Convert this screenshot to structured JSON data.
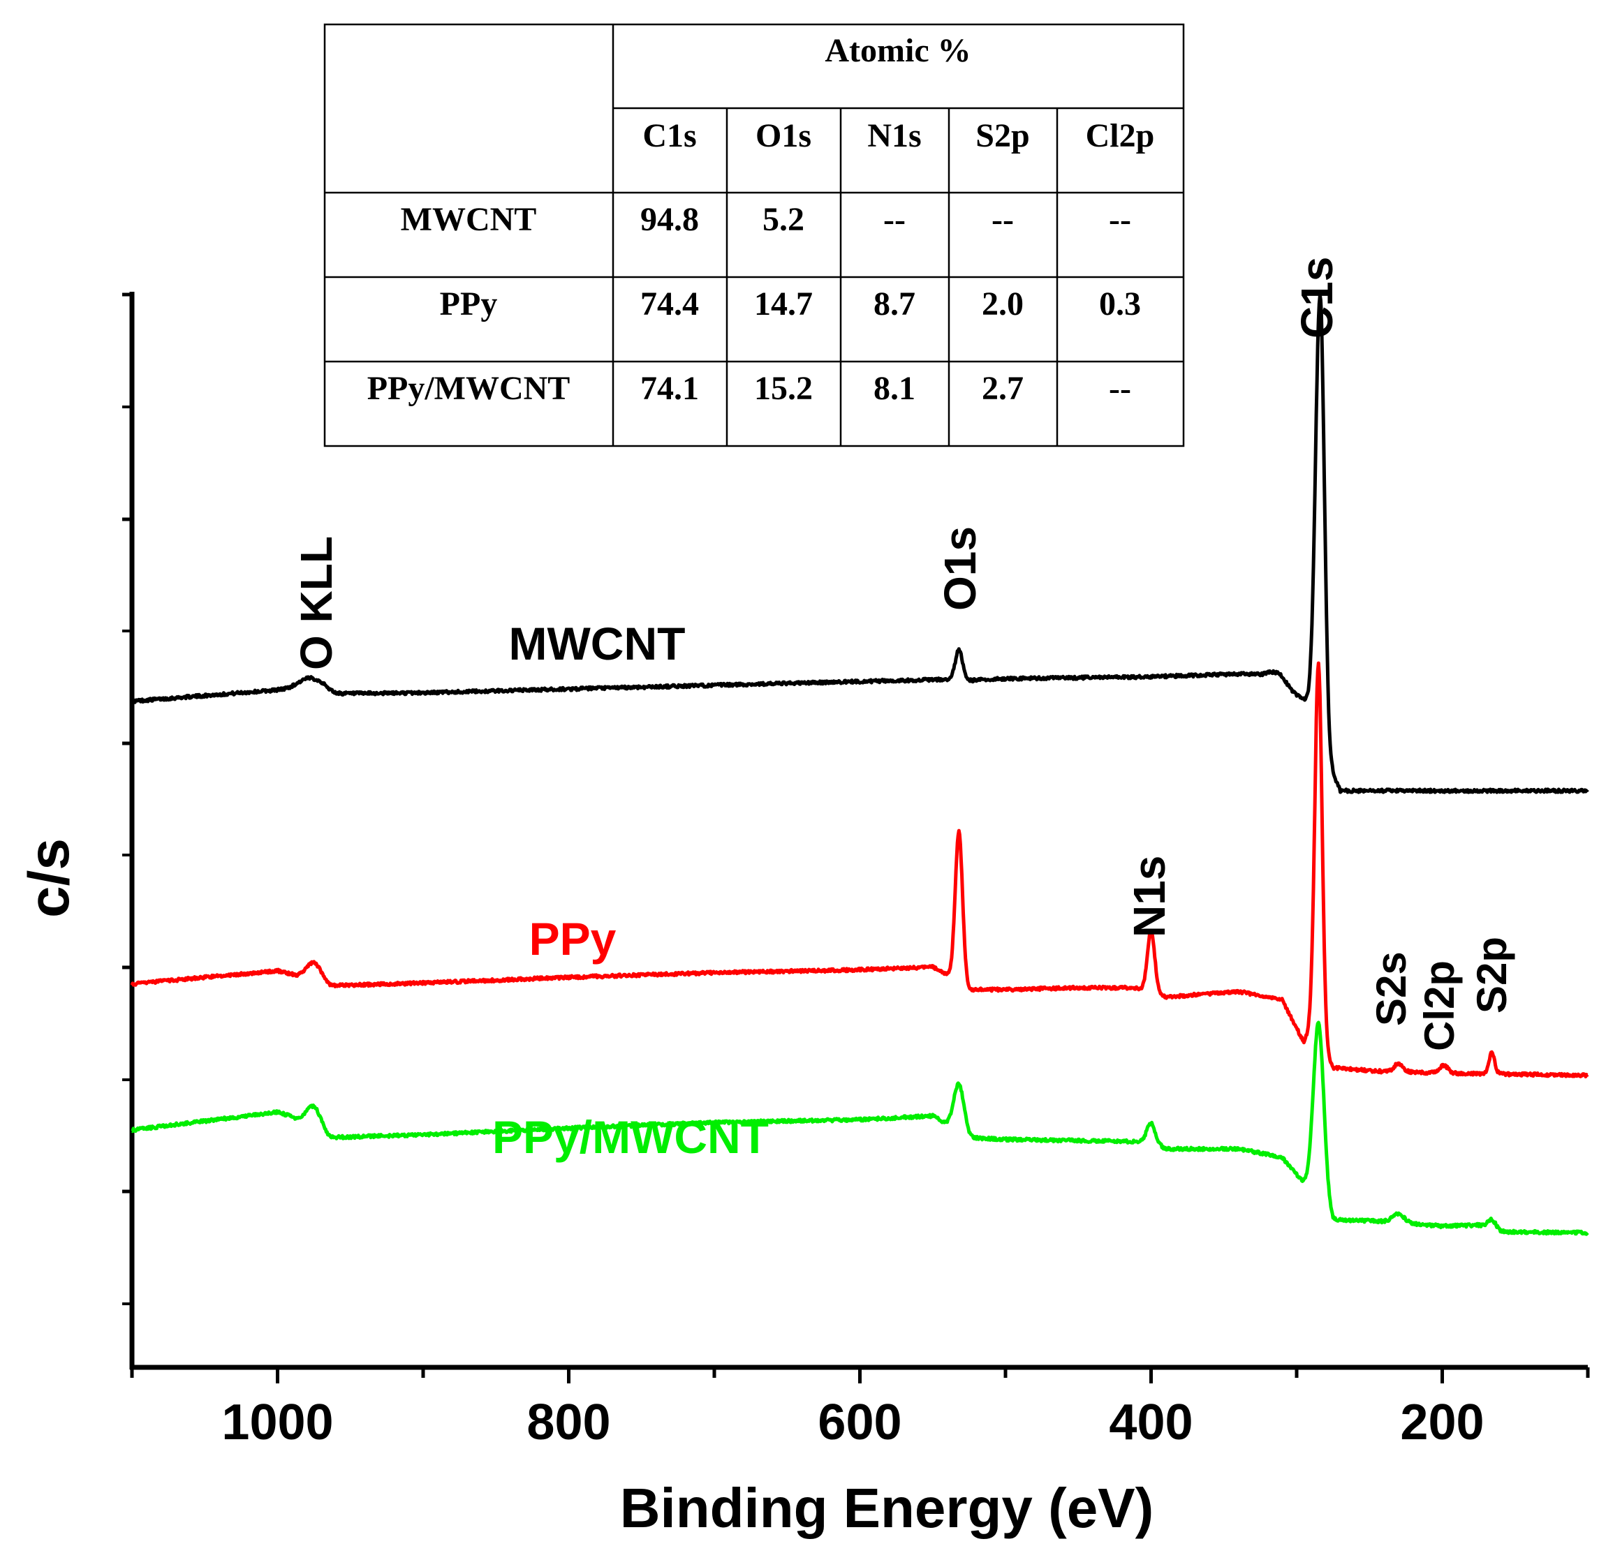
{
  "chart_data": {
    "type": "line",
    "title": "",
    "xlabel": "Binding Energy (eV)",
    "ylabel": "c/s",
    "xlim": [
      1100,
      100
    ],
    "x_reversed": true,
    "xticks_major": [
      1000,
      800,
      600,
      400,
      200
    ],
    "xticks_minor_step": 100,
    "y_ticks_shown_without_labels": true,
    "y_units": "relative intensity (stacked, offset)",
    "series": [
      {
        "name": "MWCNT",
        "color": "#000000",
        "baseline": [
          [
            1100,
            4.9
          ],
          [
            1000,
            5.5
          ],
          [
            970,
            5.6
          ],
          [
            960,
            5.3
          ],
          [
            900,
            5.35
          ],
          [
            800,
            5.55
          ],
          [
            700,
            5.75
          ],
          [
            600,
            5.95
          ],
          [
            545,
            6.05
          ],
          [
            525,
            6.0
          ],
          [
            500,
            6.1
          ],
          [
            400,
            6.2
          ],
          [
            340,
            6.35
          ],
          [
            320,
            6.3
          ],
          [
            300,
            5.2
          ],
          [
            292,
            4.9
          ],
          [
            283,
            6.0
          ],
          [
            278,
            1.5
          ],
          [
            270,
            0.15
          ],
          [
            100,
            0.15
          ]
        ],
        "peaks": [
          {
            "label": "O KLL",
            "x": 978,
            "height": 0.55,
            "width": 8
          },
          {
            "label": "O1s",
            "x": 532,
            "height": 1.6,
            "width": 2.5
          },
          {
            "label": "C1s",
            "x": 284,
            "height": 20.5,
            "width": 3
          },
          {
            "label": "",
            "x": 312,
            "height": 0.5,
            "width": 5
          }
        ],
        "label_text": "MWCNT"
      },
      {
        "name": "PPy",
        "color": "#ff0000",
        "baseline": [
          [
            1100,
            4.9
          ],
          [
            1000,
            5.6
          ],
          [
            990,
            5.4
          ],
          [
            965,
            4.8
          ],
          [
            900,
            4.95
          ],
          [
            800,
            5.25
          ],
          [
            700,
            5.5
          ],
          [
            600,
            5.65
          ],
          [
            550,
            5.8
          ],
          [
            538,
            5.3
          ],
          [
            525,
            4.6
          ],
          [
            500,
            4.6
          ],
          [
            450,
            4.7
          ],
          [
            410,
            4.7
          ],
          [
            390,
            4.2
          ],
          [
            340,
            4.5
          ],
          [
            310,
            4.05
          ],
          [
            295,
            1.8
          ],
          [
            290,
            2.7
          ],
          [
            283,
            1.5
          ],
          [
            275,
            0.45
          ],
          [
            240,
            0.25
          ],
          [
            190,
            0.15
          ],
          [
            100,
            0.05
          ]
        ],
        "peaks": [
          {
            "label": "",
            "x": 975,
            "height": 1.0,
            "width": 5
          },
          {
            "label": "O1s",
            "x": 532,
            "height": 8.0,
            "width": 2.5
          },
          {
            "label": "N1s",
            "x": 400,
            "height": 3.3,
            "width": 2.5
          },
          {
            "label": "C1s",
            "x": 285,
            "height": 20.0,
            "width": 2.5
          },
          {
            "label": "S2s",
            "x": 230,
            "height": 0.45,
            "width": 3
          },
          {
            "label": "Cl2p",
            "x": 199,
            "height": 0.4,
            "width": 3
          },
          {
            "label": "S2p",
            "x": 166,
            "height": 1.1,
            "width": 2
          }
        ],
        "label_text": "PPy"
      },
      {
        "name": "PPy/MWCNT",
        "color": "#00ee00",
        "baseline": [
          [
            1100,
            9.0
          ],
          [
            1000,
            9.95
          ],
          [
            990,
            9.7
          ],
          [
            965,
            8.6
          ],
          [
            900,
            8.75
          ],
          [
            800,
            9.1
          ],
          [
            700,
            9.4
          ],
          [
            600,
            9.55
          ],
          [
            550,
            9.75
          ],
          [
            540,
            9.3
          ],
          [
            525,
            8.6
          ],
          [
            500,
            8.5
          ],
          [
            420,
            8.4
          ],
          [
            400,
            8.35
          ],
          [
            390,
            8.0
          ],
          [
            340,
            8.0
          ],
          [
            310,
            7.55
          ],
          [
            295,
            6.2
          ],
          [
            282,
            5.5
          ],
          [
            275,
            4.25
          ],
          [
            240,
            4.15
          ],
          [
            200,
            3.9
          ],
          [
            175,
            3.95
          ],
          [
            160,
            3.6
          ],
          [
            100,
            3.55
          ]
        ],
        "peaks": [
          {
            "label": "",
            "x": 975,
            "height": 1.2,
            "width": 5
          },
          {
            "label": "O1s",
            "x": 532,
            "height": 2.5,
            "width": 3.5
          },
          {
            "label": "N1s",
            "x": 400,
            "height": 1.0,
            "width": 3
          },
          {
            "label": "C1s",
            "x": 285,
            "height": 9.0,
            "width": 3.5
          },
          {
            "label": "S2s",
            "x": 230,
            "height": 0.45,
            "width": 4
          },
          {
            "label": "S2p",
            "x": 166,
            "height": 0.5,
            "width": 3
          }
        ],
        "label_text": "PPy/MWCNT"
      }
    ],
    "annotations": [
      "O KLL",
      "O1s",
      "C1s",
      "N1s",
      "S2s",
      "Cl2p",
      "S2p"
    ],
    "inset_table": {
      "group_header": "Atomic %",
      "columns": [
        "C1s",
        "O1s",
        "N1s",
        "S2p",
        "Cl2p"
      ],
      "rows": [
        {
          "sample": "MWCNT",
          "values": [
            "94.8",
            "5.2",
            "--",
            "--",
            "--"
          ]
        },
        {
          "sample": "PPy",
          "values": [
            "74.4",
            "14.7",
            "8.7",
            "2.0",
            "0.3"
          ]
        },
        {
          "sample": "PPy/MWCNT",
          "values": [
            "74.1",
            "15.2",
            "8.1",
            "2.7",
            "--"
          ]
        }
      ]
    }
  }
}
